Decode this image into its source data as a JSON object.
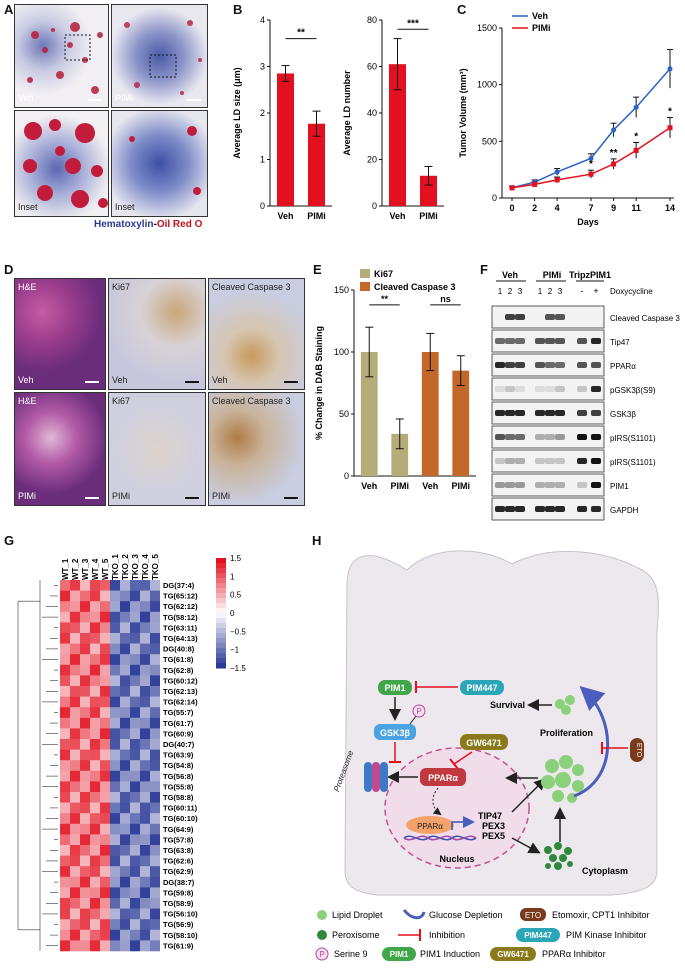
{
  "panels": {
    "a": "A",
    "b": "B",
    "c": "C",
    "d": "D",
    "e": "E",
    "f": "F",
    "g": "G",
    "h": "H"
  },
  "panel_a": {
    "veh": "Veh",
    "pimi": "PIMi",
    "inset1": "Inset",
    "inset2": "Inset",
    "caption_hem": "Hematoxylin",
    "caption_dash": "-",
    "caption_oil": "Oil Red O",
    "color_hem": "#2b3a8f",
    "color_oil": "#c1121f"
  },
  "panel_d": {
    "he1": "H&E",
    "ki67_1": "Ki67",
    "cc3_1": "Cleaved Caspase 3",
    "veh1": "Veh",
    "veh2": "Veh",
    "veh3": "Veh",
    "he2": "H&E",
    "ki67_2": "Ki67",
    "cc3_2": "Cleaved Caspase 3",
    "pimi1": "PIMi",
    "pimi2": "PIMi",
    "pimi3": "PIMi"
  },
  "chart_data": [
    {
      "panel": "B-left",
      "type": "bar",
      "categories": [
        "Veh",
        "PIMi"
      ],
      "values": [
        2.85,
        1.77
      ],
      "errors": [
        0.17,
        0.27
      ],
      "ylabel": "Average LD size (μm)",
      "ylim": [
        0,
        4
      ],
      "yticks": [
        0,
        1,
        2,
        3,
        4
      ],
      "significance": "**",
      "color": "#e3101f"
    },
    {
      "panel": "B-right",
      "type": "bar",
      "categories": [
        "Veh",
        "PIMi"
      ],
      "values": [
        61,
        13
      ],
      "errors": [
        11,
        4
      ],
      "ylabel": "Average LD number",
      "ylim": [
        0,
        80
      ],
      "yticks": [
        0,
        20,
        40,
        60,
        80
      ],
      "significance": "***",
      "color": "#e3101f"
    },
    {
      "panel": "C",
      "type": "line",
      "x": [
        0,
        2,
        4,
        7,
        9,
        11,
        14
      ],
      "series": [
        {
          "name": "Veh",
          "values": [
            90,
            140,
            230,
            350,
            600,
            800,
            1140
          ],
          "errors": [
            15,
            20,
            30,
            40,
            60,
            90,
            170
          ],
          "color": "#2b63c6"
        },
        {
          "name": "PIMi",
          "values": [
            90,
            120,
            160,
            210,
            300,
            420,
            620
          ],
          "errors": [
            15,
            20,
            25,
            35,
            45,
            70,
            90
          ],
          "color": "#e3101f"
        }
      ],
      "xlabel": "Days",
      "ylabel": "Tumor Volume (mm³)",
      "ylim": [
        0,
        1500
      ],
      "yticks": [
        0,
        500,
        1000,
        1500
      ],
      "annotations": [
        {
          "x": 7,
          "text": "*"
        },
        {
          "x": 9,
          "text": "**"
        },
        {
          "x": 11,
          "text": "*"
        },
        {
          "x": 14,
          "text": "*"
        }
      ],
      "legend": "top-left"
    },
    {
      "panel": "E",
      "type": "bar",
      "categories": [
        "Veh",
        "PIMi",
        "Veh",
        "PIMi"
      ],
      "values": [
        100,
        34,
        100,
        85
      ],
      "errors": [
        20,
        12,
        15,
        12
      ],
      "colors": [
        "#b5ad79",
        "#b5ad79",
        "#c4672a",
        "#c4672a"
      ],
      "series_names": [
        "Ki67",
        "Cleaved Caspase 3"
      ],
      "ylabel": "% Change in DAB Staining",
      "ylim": [
        0,
        150
      ],
      "yticks": [
        0,
        50,
        100,
        150
      ],
      "significance": [
        "**",
        "ns"
      ],
      "legend": "top-left"
    },
    {
      "panel": "G",
      "type": "heatmap",
      "columns": [
        "WT_1",
        "WT_2",
        "WT_3",
        "WT_4",
        "WT_5",
        "TKO_1",
        "TKO_2",
        "TKO_3",
        "TKO_4",
        "TKO_5"
      ],
      "rows": [
        "DG(37:4)",
        "TG(65:12)",
        "TG(62:12)",
        "TG(58:12)",
        "TG(63:11)",
        "TG(64:13)",
        "DG(40:8)",
        "TG(61:8)",
        "TG(62:8)",
        "TG(60:12)",
        "TG(62:13)",
        "TG(62:14)",
        "TG(55:7)",
        "TG(61:7)",
        "TG(60:9)",
        "DG(40:7)",
        "TG(63:9)",
        "TG(54:8)",
        "TG(56:8)",
        "TG(55:8)",
        "TG(58:8)",
        "TG(60:11)",
        "TG(60:10)",
        "TG(64:9)",
        "TG(57:8)",
        "TG(63:8)",
        "TG(62:6)",
        "TG(62:9)",
        "DG(38:7)",
        "TG(59:8)",
        "TG(58:9)",
        "TG(56:10)",
        "TG(56:9)",
        "TG(58:10)",
        "TG(61:9)"
      ],
      "colorbar_ticks": [
        "1.5",
        "1",
        "0.5",
        "0",
        "−0.5",
        "−1",
        "−1.5"
      ],
      "colormap": [
        "#2b3a96",
        "#ffffff",
        "#e3101f"
      ]
    }
  ],
  "panel_f": {
    "header_veh": "Veh",
    "header_pimi": "PIMi",
    "header_tripz": "TripzPIM1",
    "lane_nums": [
      "1",
      "2",
      "3",
      "1",
      "2",
      "3"
    ],
    "dox_minus": "-",
    "dox_plus": "+",
    "doxycycline": "Doxycycline",
    "bands": [
      "Cleaved Caspase 3",
      "Tip47",
      "PPARα",
      "pGSK3β(S9)",
      "GSK3β",
      "pIRS(S1101)",
      "pIRS(S1101)",
      "PIM1",
      "GAPDH"
    ]
  },
  "panel_h": {
    "pim1": "PIM1",
    "pim447": "PIM447",
    "p": "P",
    "gsk3b": "GSK3β",
    "gw6471": "GW6471",
    "ppara": "PPARα",
    "ppara_nuc": "PPARα",
    "proteasome": "Proteasome",
    "targets": [
      "TIP47",
      "PEX3",
      "PEX5"
    ],
    "nucleus": "Nucleus",
    "cytoplasm": "Cytoplasm",
    "survival": "Survival",
    "proliferation": "Proliferation",
    "eto": "ETO",
    "legend": {
      "lipid": "Lipid Droplet",
      "glucose": "Glucose Depletion",
      "eto_desc": "Etomoxir, CPT1 Inhibitor",
      "perox": "Peroxisome",
      "inhibition": "Inhibition",
      "pim447_desc": "PIM Kinase Inhibitor",
      "serine": "Serine 9",
      "pim1_desc": "PIM1 Induction",
      "gw_desc": "PPARα Inhibitor"
    }
  }
}
